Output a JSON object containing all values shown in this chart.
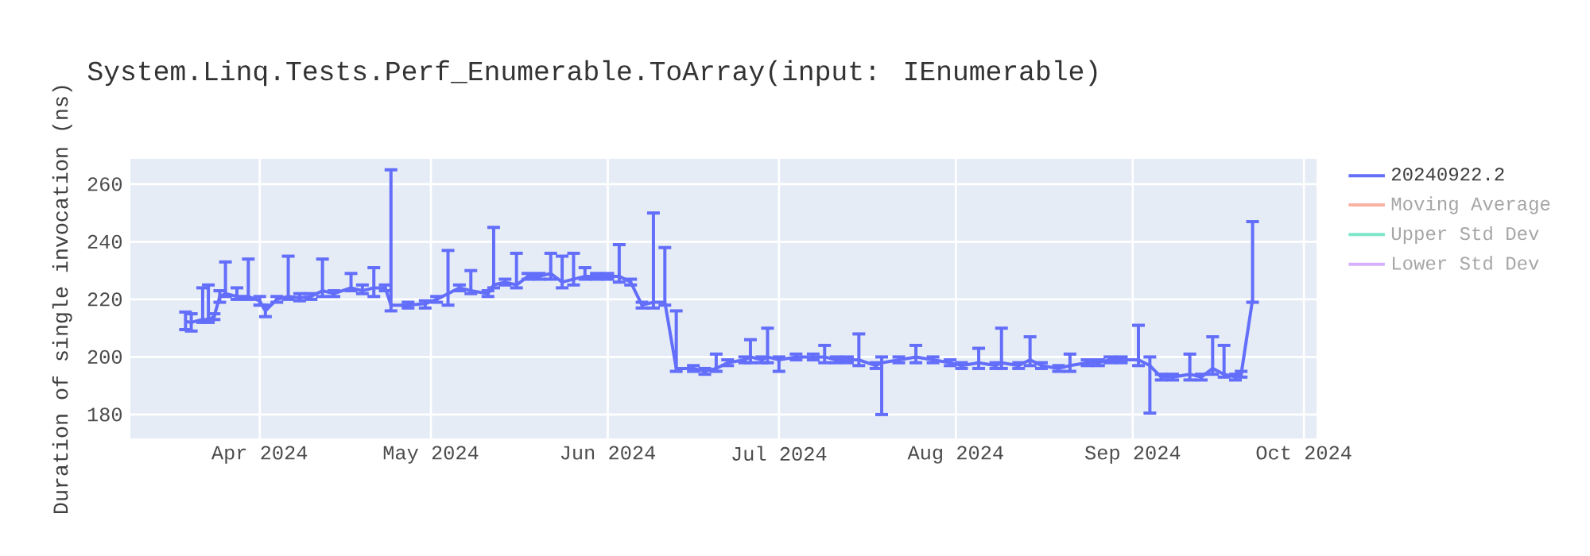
{
  "chart_data": {
    "type": "line",
    "title": "System.Linq.Tests.Perf_Enumerable.ToArray(input: IEnumerable)",
    "ylabel": "Duration of single invocation (ns)",
    "x": [
      "2024-03-19",
      "2024-03-20",
      "2024-03-22",
      "2024-03-23",
      "2024-03-24",
      "2024-03-25",
      "2024-03-26",
      "2024-03-28",
      "2024-03-30",
      "2024-04-01",
      "2024-04-02",
      "2024-04-04",
      "2024-04-06",
      "2024-04-08",
      "2024-04-10",
      "2024-04-12",
      "2024-04-14",
      "2024-04-17",
      "2024-04-19",
      "2024-04-21",
      "2024-04-23",
      "2024-04-24",
      "2024-04-27",
      "2024-04-30",
      "2024-05-02",
      "2024-05-04",
      "2024-05-06",
      "2024-05-08",
      "2024-05-11",
      "2024-05-12",
      "2024-05-14",
      "2024-05-16",
      "2024-05-18",
      "2024-05-20",
      "2024-05-22",
      "2024-05-24",
      "2024-05-26",
      "2024-05-28",
      "2024-05-30",
      "2024-06-01",
      "2024-06-03",
      "2024-06-05",
      "2024-06-07",
      "2024-06-09",
      "2024-06-11",
      "2024-06-13",
      "2024-06-16",
      "2024-06-18",
      "2024-06-20",
      "2024-06-22",
      "2024-06-25",
      "2024-06-26",
      "2024-06-28",
      "2024-06-29",
      "2024-07-01",
      "2024-07-04",
      "2024-07-07",
      "2024-07-09",
      "2024-07-11",
      "2024-07-13",
      "2024-07-15",
      "2024-07-18",
      "2024-07-19",
      "2024-07-22",
      "2024-07-25",
      "2024-07-28",
      "2024-07-31",
      "2024-08-02",
      "2024-08-05",
      "2024-08-08",
      "2024-08-09",
      "2024-08-12",
      "2024-08-14",
      "2024-08-16",
      "2024-08-19",
      "2024-08-21",
      "2024-08-24",
      "2024-08-26",
      "2024-08-28",
      "2024-08-30",
      "2024-09-02",
      "2024-09-04",
      "2024-09-06",
      "2024-09-08",
      "2024-09-11",
      "2024-09-13",
      "2024-09-15",
      "2024-09-17",
      "2024-09-19",
      "2024-09-20",
      "2024-09-22"
    ],
    "series": [
      {
        "name": "20240922.2",
        "color": "#636efa",
        "values": [
          212.3,
          212,
          213,
          213,
          214,
          221,
          222,
          221,
          221,
          219.5,
          216,
          220,
          221,
          220.5,
          221,
          223,
          222,
          224,
          223,
          224,
          224,
          218,
          218,
          218.5,
          220,
          222,
          224,
          223,
          222,
          225,
          226,
          225,
          228,
          228,
          229,
          226,
          227,
          228,
          228,
          228,
          228,
          226,
          218,
          219,
          219,
          196,
          196,
          195,
          196,
          198,
          199,
          200,
          199,
          200,
          199,
          200,
          200,
          200,
          199,
          199,
          199,
          197,
          198,
          199,
          200,
          199,
          198,
          197,
          198,
          197,
          198,
          197,
          199,
          197,
          196,
          197,
          198,
          198,
          199,
          199,
          199,
          197,
          193,
          193,
          194,
          193,
          196,
          194,
          193,
          194,
          220
        ],
        "errors": [
          [
            209.5,
            215.6
          ],
          [
            209,
            215
          ],
          [
            212,
            224
          ],
          [
            212,
            225
          ],
          [
            213,
            215
          ],
          [
            219,
            223
          ],
          [
            221,
            233
          ],
          [
            220,
            224
          ],
          [
            220,
            234
          ],
          [
            218,
            221
          ],
          [
            214,
            218
          ],
          [
            219,
            221
          ],
          [
            220,
            235
          ],
          [
            219.5,
            222
          ],
          [
            220,
            222
          ],
          [
            221,
            234
          ],
          [
            221,
            223
          ],
          [
            223,
            229
          ],
          [
            222,
            225
          ],
          [
            221,
            231
          ],
          [
            223,
            225
          ],
          [
            216,
            265
          ],
          [
            217,
            219
          ],
          [
            217,
            219.5
          ],
          [
            219,
            221
          ],
          [
            218,
            237
          ],
          [
            223,
            225
          ],
          [
            222,
            230
          ],
          [
            221,
            223
          ],
          [
            224,
            245
          ],
          [
            225,
            227
          ],
          [
            224,
            236
          ],
          [
            227,
            229
          ],
          [
            227,
            229
          ],
          [
            227,
            236
          ],
          [
            224,
            235
          ],
          [
            225,
            236
          ],
          [
            227,
            231
          ],
          [
            227,
            229
          ],
          [
            227,
            229
          ],
          [
            226,
            239
          ],
          [
            225,
            227
          ],
          [
            217,
            219
          ],
          [
            217,
            250
          ],
          [
            218,
            238
          ],
          [
            195,
            216
          ],
          [
            195,
            197
          ],
          [
            194,
            196
          ],
          [
            195,
            201
          ],
          [
            197,
            199
          ],
          [
            198,
            200
          ],
          [
            198,
            206
          ],
          [
            198,
            200
          ],
          [
            198,
            210
          ],
          [
            195,
            200
          ],
          [
            199,
            201
          ],
          [
            199,
            201
          ],
          [
            198,
            204
          ],
          [
            198,
            200
          ],
          [
            198,
            200
          ],
          [
            197,
            208
          ],
          [
            196,
            198
          ],
          [
            180,
            200
          ],
          [
            198,
            200
          ],
          [
            198,
            204
          ],
          [
            198,
            200
          ],
          [
            197,
            199
          ],
          [
            196,
            198
          ],
          [
            196,
            203
          ],
          [
            196,
            198
          ],
          [
            196,
            210
          ],
          [
            196,
            198
          ],
          [
            197,
            207
          ],
          [
            196,
            198
          ],
          [
            195,
            197
          ],
          [
            195,
            201
          ],
          [
            197,
            199
          ],
          [
            197,
            199
          ],
          [
            198,
            200
          ],
          [
            198,
            200
          ],
          [
            197,
            211
          ],
          [
            180.5,
            200
          ],
          [
            192,
            194
          ],
          [
            192,
            194
          ],
          [
            192,
            201
          ],
          [
            192,
            194
          ],
          [
            194,
            207
          ],
          [
            193,
            204
          ],
          [
            192,
            194
          ],
          [
            193,
            195
          ],
          [
            219,
            247
          ]
        ]
      },
      {
        "name": "Moving Average",
        "color": "#f9b1a4",
        "values": [
          null,
          null,
          null,
          null,
          null,
          null,
          null,
          null,
          null,
          null,
          null,
          null,
          null,
          null,
          null,
          null,
          null,
          null,
          null,
          null,
          null,
          null,
          null,
          null,
          null,
          null,
          null,
          null,
          null,
          null,
          null,
          null,
          null,
          null,
          null,
          null,
          null,
          null,
          null,
          null,
          null,
          null,
          null,
          null,
          null,
          null,
          null,
          null,
          null,
          null,
          null,
          null,
          null,
          null,
          null,
          null,
          null,
          null,
          null,
          null,
          null,
          null,
          null,
          null,
          null,
          null,
          null,
          null,
          null,
          null,
          null,
          null,
          null,
          null,
          null,
          null,
          null,
          null,
          null,
          null,
          null,
          null,
          null,
          null,
          null,
          null,
          null,
          null,
          null,
          null,
          null
        ]
      },
      {
        "name": "Upper Std Dev",
        "color": "#80e6cb",
        "values": [
          null,
          null,
          null,
          null,
          null,
          null,
          null,
          null,
          null,
          null,
          null,
          null,
          null,
          null,
          null,
          null,
          null,
          null,
          null,
          null,
          null,
          null,
          null,
          null,
          null,
          null,
          null,
          null,
          null,
          null,
          null,
          null,
          null,
          null,
          null,
          null,
          null,
          null,
          null,
          null,
          null,
          null,
          null,
          null,
          null,
          null,
          null,
          null,
          null,
          null,
          null,
          null,
          null,
          null,
          null,
          null,
          null,
          null,
          null,
          null,
          null,
          null,
          null,
          null,
          null,
          null,
          null,
          null,
          null,
          null,
          null,
          null,
          null,
          null,
          null,
          null,
          null,
          null,
          null,
          null,
          null,
          null,
          null,
          null,
          null,
          null,
          null,
          null,
          null,
          null,
          null
        ]
      },
      {
        "name": "Lower Std Dev",
        "color": "#d5b1fd",
        "values": [
          null,
          null,
          null,
          null,
          null,
          null,
          null,
          null,
          null,
          null,
          null,
          null,
          null,
          null,
          null,
          null,
          null,
          null,
          null,
          null,
          null,
          null,
          null,
          null,
          null,
          null,
          null,
          null,
          null,
          null,
          null,
          null,
          null,
          null,
          null,
          null,
          null,
          null,
          null,
          null,
          null,
          null,
          null,
          null,
          null,
          null,
          null,
          null,
          null,
          null,
          null,
          null,
          null,
          null,
          null,
          null,
          null,
          null,
          null,
          null,
          null,
          null,
          null,
          null,
          null,
          null,
          null,
          null,
          null,
          null,
          null,
          null,
          null,
          null,
          null,
          null,
          null,
          null,
          null,
          null,
          null,
          null,
          null,
          null,
          null,
          null,
          null,
          null,
          null,
          null,
          null
        ]
      }
    ],
    "xlim": [
      "2024-03-09T08:00",
      "2024-10-03T05:00"
    ],
    "xticks": [
      {
        "value": "2024-04-01",
        "label": "Apr 2024"
      },
      {
        "value": "2024-05-01",
        "label": "May 2024"
      },
      {
        "value": "2024-06-01",
        "label": "Jun 2024"
      },
      {
        "value": "2024-07-01",
        "label": "Jul 2024"
      },
      {
        "value": "2024-08-01",
        "label": "Aug 2024"
      },
      {
        "value": "2024-09-01",
        "label": "Sep 2024"
      },
      {
        "value": "2024-10-01",
        "label": "Oct 2024"
      }
    ],
    "ylim": [
      171.7,
      268.8
    ],
    "yticks": [
      180,
      200,
      220,
      240,
      260
    ],
    "grid": true,
    "legend": "top right",
    "marker": "none",
    "line_style": "solid"
  }
}
